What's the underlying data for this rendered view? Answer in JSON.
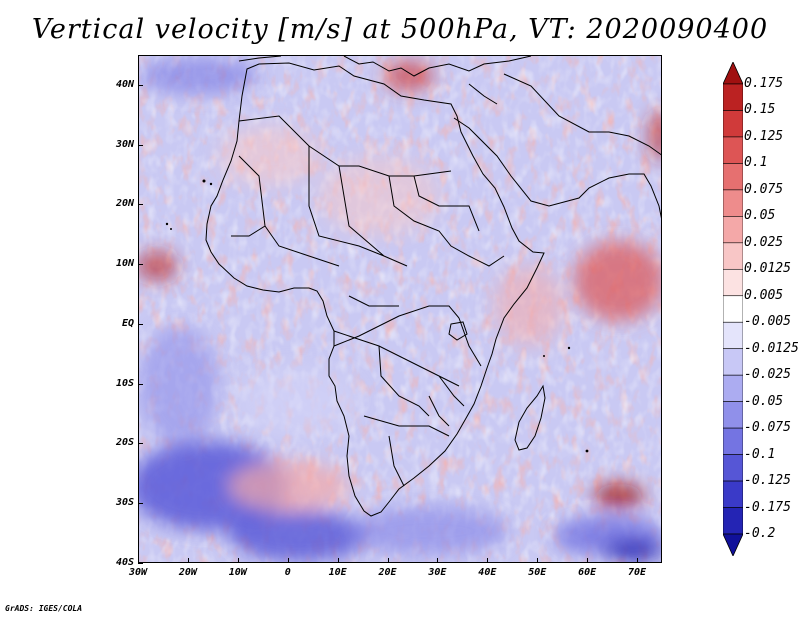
{
  "title": "Vertical velocity [m/s] at 500hPa, VT: 2020090400",
  "footer": "GrADS: IGES/COLA",
  "map": {
    "region": "Africa and surrounding oceans",
    "field": "vertical velocity",
    "level": "500hPa",
    "lon_range": [
      -30,
      75
    ],
    "lat_range": [
      -40,
      45
    ],
    "lat_ticks": [
      "40N",
      "30N",
      "20N",
      "10N",
      "EQ",
      "10S",
      "20S",
      "30S",
      "40S"
    ],
    "lat_values": [
      40,
      30,
      20,
      10,
      0,
      -10,
      -20,
      -30,
      -40
    ],
    "lon_ticks": [
      "30W",
      "20W",
      "10W",
      "0",
      "10E",
      "20E",
      "30E",
      "40E",
      "50E",
      "60E",
      "70E"
    ],
    "lon_values": [
      -30,
      -20,
      -10,
      0,
      10,
      20,
      30,
      40,
      50,
      60,
      70
    ]
  },
  "colorbar": {
    "labels": [
      "0.175",
      "0.15",
      "0.125",
      "0.1",
      "0.075",
      "0.05",
      "0.025",
      "0.0125",
      "0.005",
      "-0.005",
      "-0.0125",
      "-0.025",
      "-0.05",
      "-0.075",
      "-0.1",
      "-0.125",
      "-0.175",
      "-0.2"
    ],
    "colors": [
      "#a01010",
      "#bb2222",
      "#d03a3a",
      "#dd5555",
      "#e67070",
      "#ee8c8c",
      "#f4a8a8",
      "#f8c6c6",
      "#fce2e2",
      "#ffffff",
      "#e4e4fb",
      "#c8c8f6",
      "#acacf1",
      "#9090ea",
      "#7474e2",
      "#5656d6",
      "#3a3ac8",
      "#2424b4",
      "#1010a0"
    ],
    "low_arrow_color": "#10109a",
    "high_arrow_color": "#a01010"
  }
}
